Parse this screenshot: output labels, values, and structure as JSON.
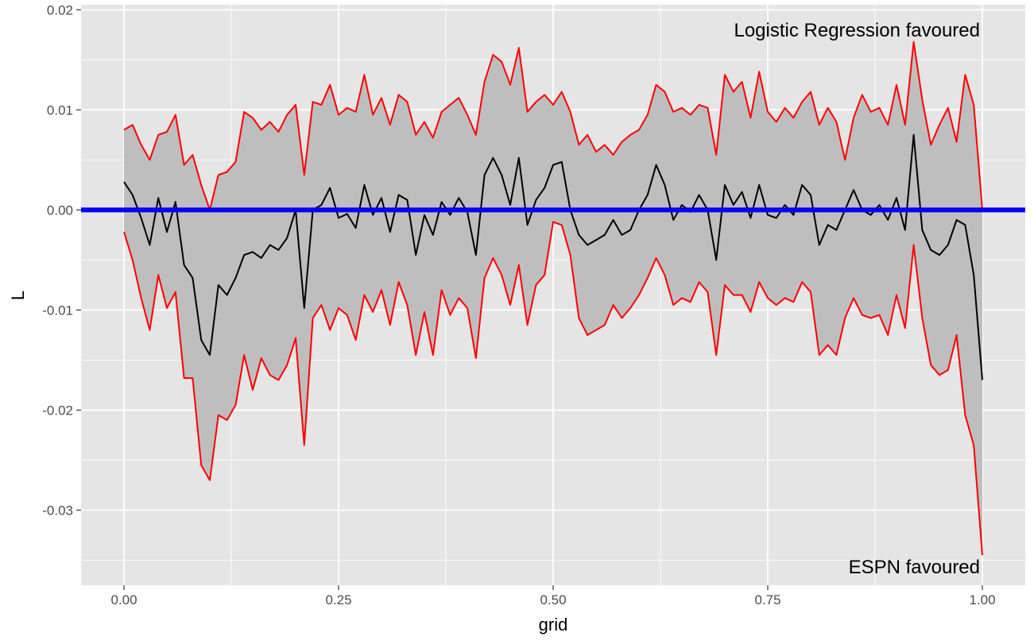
{
  "chart_data": {
    "type": "line",
    "xlabel": "grid",
    "ylabel": "L",
    "xlim": [
      -0.05,
      1.05
    ],
    "ylim": [
      -0.0375,
      0.0205
    ],
    "x_ticks": [
      0.0,
      0.25,
      0.5,
      0.75,
      1.0
    ],
    "x_tick_labels": [
      "0.00",
      "0.25",
      "0.50",
      "0.75",
      "1.00"
    ],
    "y_ticks": [
      0.02,
      0.01,
      0.0,
      -0.01,
      -0.02,
      -0.03
    ],
    "y_tick_labels": [
      "0.02",
      "0.01",
      "0.00",
      "-0.01",
      "-0.02",
      "-0.03"
    ],
    "grid": true,
    "background": "#e5e5e5",
    "reference_line": {
      "y": 0.0,
      "color": "#0000ff"
    },
    "annotations": [
      {
        "text": "Logistic Regression favoured",
        "x": 1.0,
        "y": 0.0185
      },
      {
        "text": "ESPN favoured",
        "x": 1.0,
        "y": -0.0357
      }
    ],
    "ribbon_color": "#bebebe",
    "x": [
      0.0,
      0.01,
      0.02,
      0.03,
      0.04,
      0.05,
      0.06,
      0.07,
      0.08,
      0.09,
      0.1,
      0.11,
      0.12,
      0.13,
      0.14,
      0.15,
      0.16,
      0.17,
      0.18,
      0.19,
      0.2,
      0.21,
      0.22,
      0.23,
      0.24,
      0.25,
      0.26,
      0.27,
      0.28,
      0.29,
      0.3,
      0.31,
      0.32,
      0.33,
      0.34,
      0.35,
      0.36,
      0.37,
      0.38,
      0.39,
      0.4,
      0.41,
      0.42,
      0.43,
      0.44,
      0.45,
      0.46,
      0.47,
      0.48,
      0.49,
      0.5,
      0.51,
      0.52,
      0.53,
      0.54,
      0.55,
      0.56,
      0.57,
      0.58,
      0.59,
      0.6,
      0.61,
      0.62,
      0.63,
      0.64,
      0.65,
      0.66,
      0.67,
      0.68,
      0.69,
      0.7,
      0.71,
      0.72,
      0.73,
      0.74,
      0.75,
      0.76,
      0.77,
      0.78,
      0.79,
      0.8,
      0.81,
      0.82,
      0.83,
      0.84,
      0.85,
      0.86,
      0.87,
      0.88,
      0.89,
      0.9,
      0.91,
      0.92,
      0.93,
      0.94,
      0.95,
      0.96,
      0.97,
      0.98,
      0.99,
      1.0
    ],
    "series": [
      {
        "role": "estimate",
        "color": "#000000",
        "values": [
          0.0028,
          0.0015,
          -0.0008,
          -0.0035,
          0.0012,
          -0.0022,
          0.0008,
          -0.0055,
          -0.0068,
          -0.013,
          -0.0145,
          -0.0075,
          -0.0085,
          -0.0068,
          -0.0045,
          -0.0042,
          -0.0048,
          -0.0035,
          -0.004,
          -0.0028,
          0.0,
          -0.0098,
          0.0,
          0.0005,
          0.0022,
          -0.0008,
          -0.0004,
          -0.0018,
          0.0025,
          -0.0005,
          0.0012,
          -0.0022,
          0.0015,
          0.001,
          -0.0045,
          -0.0005,
          -0.0025,
          0.0008,
          -0.0005,
          0.0012,
          -0.0002,
          -0.0045,
          0.0035,
          0.0052,
          0.0035,
          0.0005,
          0.0052,
          -0.0015,
          0.001,
          0.0022,
          0.0045,
          0.0048,
          0.0,
          -0.0025,
          -0.0035,
          -0.003,
          -0.0025,
          -0.001,
          -0.0025,
          -0.002,
          0.0,
          0.0015,
          0.0045,
          0.0025,
          -0.001,
          0.0005,
          -0.0002,
          0.0015,
          0.0,
          -0.005,
          0.0025,
          0.0005,
          0.0018,
          -0.0008,
          0.0025,
          -0.0005,
          -0.0008,
          0.0005,
          -0.0005,
          0.0025,
          0.0015,
          -0.0035,
          -0.0015,
          -0.002,
          0.0,
          0.002,
          0.0,
          -0.0005,
          0.0005,
          -0.001,
          0.0012,
          -0.002,
          0.0075,
          -0.002,
          -0.004,
          -0.0045,
          -0.0035,
          -0.001,
          -0.0015,
          -0.0065,
          -0.017
        ]
      },
      {
        "role": "upper",
        "color": "#ff0000",
        "values": [
          0.008,
          0.0085,
          0.0065,
          0.005,
          0.0075,
          0.0078,
          0.0095,
          0.0045,
          0.0055,
          0.0025,
          0.0,
          0.0035,
          0.0038,
          0.0048,
          0.0098,
          0.0092,
          0.008,
          0.0088,
          0.0078,
          0.0095,
          0.0105,
          0.0035,
          0.0108,
          0.0105,
          0.0125,
          0.0095,
          0.0102,
          0.0098,
          0.0135,
          0.0095,
          0.0112,
          0.0085,
          0.0115,
          0.0108,
          0.0075,
          0.0088,
          0.0072,
          0.0098,
          0.0105,
          0.0112,
          0.0095,
          0.0075,
          0.0128,
          0.0155,
          0.0148,
          0.0125,
          0.0162,
          0.0098,
          0.0108,
          0.0115,
          0.0105,
          0.0118,
          0.0098,
          0.0065,
          0.0075,
          0.0058,
          0.0065,
          0.0055,
          0.0068,
          0.0075,
          0.008,
          0.0095,
          0.0125,
          0.0118,
          0.0098,
          0.0102,
          0.0095,
          0.0105,
          0.0102,
          0.0055,
          0.0135,
          0.0118,
          0.0128,
          0.0092,
          0.0138,
          0.0098,
          0.0088,
          0.0102,
          0.0092,
          0.0108,
          0.0118,
          0.0085,
          0.0102,
          0.0088,
          0.005,
          0.0092,
          0.0115,
          0.0098,
          0.0102,
          0.0085,
          0.0125,
          0.0085,
          0.0168,
          0.011,
          0.0065,
          0.0085,
          0.0102,
          0.0068,
          0.0135,
          0.0105,
          0.0
        ]
      },
      {
        "role": "lower",
        "color": "#ff0000",
        "values": [
          -0.0022,
          -0.005,
          -0.0088,
          -0.012,
          -0.0065,
          -0.0098,
          -0.0082,
          -0.0168,
          -0.0168,
          -0.0255,
          -0.027,
          -0.0205,
          -0.021,
          -0.0195,
          -0.0145,
          -0.018,
          -0.0148,
          -0.0165,
          -0.017,
          -0.0155,
          -0.0128,
          -0.0235,
          -0.0108,
          -0.0095,
          -0.012,
          -0.0098,
          -0.0105,
          -0.013,
          -0.0085,
          -0.0102,
          -0.008,
          -0.0115,
          -0.0072,
          -0.0095,
          -0.0145,
          -0.0102,
          -0.0145,
          -0.008,
          -0.0105,
          -0.0088,
          -0.0098,
          -0.0148,
          -0.0068,
          -0.0048,
          -0.0065,
          -0.0095,
          -0.0055,
          -0.0115,
          -0.0075,
          -0.0065,
          -0.0012,
          -0.0015,
          -0.0045,
          -0.0108,
          -0.0125,
          -0.012,
          -0.0115,
          -0.0095,
          -0.0108,
          -0.0098,
          -0.0085,
          -0.0068,
          -0.0048,
          -0.0065,
          -0.0095,
          -0.0088,
          -0.0092,
          -0.0072,
          -0.0082,
          -0.0145,
          -0.0075,
          -0.0085,
          -0.0085,
          -0.0102,
          -0.0072,
          -0.0088,
          -0.0095,
          -0.0088,
          -0.0092,
          -0.0072,
          -0.0082,
          -0.0145,
          -0.0135,
          -0.0145,
          -0.0108,
          -0.0088,
          -0.0105,
          -0.0108,
          -0.0105,
          -0.0125,
          -0.0085,
          -0.0118,
          -0.0035,
          -0.0108,
          -0.0155,
          -0.0165,
          -0.016,
          -0.0125,
          -0.0205,
          -0.0235,
          -0.0345
        ]
      }
    ]
  }
}
